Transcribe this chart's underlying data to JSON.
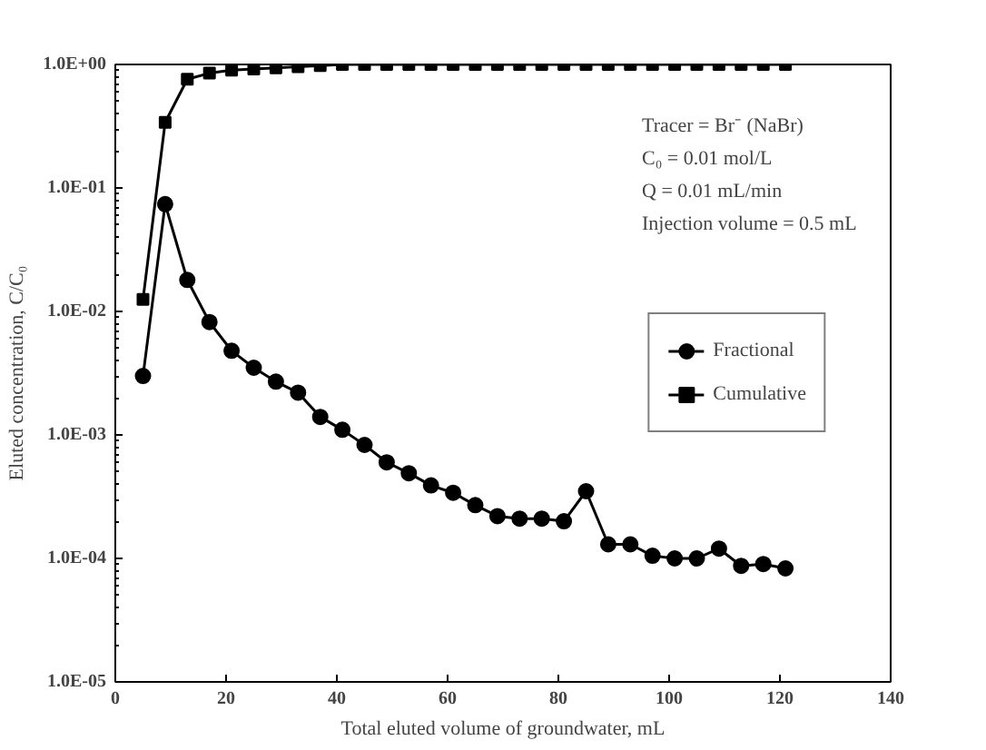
{
  "chart_data": {
    "type": "line",
    "xlabel": "Total eluted volume of groundwater, mL",
    "ylabel": "Eluted concentration, C/C₀",
    "x": [
      5,
      9,
      13,
      17,
      21,
      25,
      29,
      33,
      37,
      41,
      45,
      49,
      53,
      57,
      61,
      65,
      69,
      73,
      77,
      81,
      85,
      89,
      93,
      97,
      101,
      105,
      109,
      113,
      117,
      121
    ],
    "series": [
      {
        "name": "Fractional",
        "color": "#000000",
        "marker": "circle",
        "values": [
          0.003,
          0.074,
          0.018,
          0.0082,
          0.0048,
          0.0035,
          0.0027,
          0.0022,
          0.0014,
          0.0011,
          0.00083,
          0.0006,
          0.00049,
          0.00039,
          0.00034,
          0.00027,
          0.00022,
          0.00021,
          0.00021,
          0.0002,
          0.00035,
          0.00013,
          0.00013,
          0.000105,
          0.0001,
          0.0001,
          0.00012,
          8.7e-05,
          9e-05,
          8.3e-05
        ]
      },
      {
        "name": "Cumulative",
        "color": "#000000",
        "marker": "square",
        "values": [
          0.0125,
          0.34,
          0.76,
          0.85,
          0.9,
          0.92,
          0.94,
          0.96,
          0.98,
          1.0,
          1.0,
          1.0,
          1.0,
          1.0,
          1.0,
          1.0,
          1.0,
          1.0,
          1.0,
          1.0,
          1.0,
          1.0,
          1.0,
          1.0,
          1.0,
          1.0,
          1.0,
          1.0,
          1.0,
          1.0
        ]
      }
    ],
    "log": "y",
    "xlim": [
      0,
      140
    ],
    "xticks": [
      0,
      20,
      40,
      60,
      80,
      100,
      120,
      140
    ],
    "ylim": [
      1e-05,
      1
    ],
    "yticks": [
      {
        "value": 1e-05,
        "label": "1.0E-05"
      },
      {
        "value": 0.0001,
        "label": "1.0E-04"
      },
      {
        "value": 0.001,
        "label": "1.0E-03"
      },
      {
        "value": 0.01,
        "label": "1.0E-02"
      },
      {
        "value": 0.1,
        "label": "1.0E-01"
      },
      {
        "value": 1,
        "label": "1.0E+00"
      }
    ],
    "grid": false,
    "legend": "right",
    "line_style": "solid",
    "annotations": [
      "Tracer = Br⁻ (NaBr)",
      "C₀ = 0.01 mol/L",
      "Q = 0.01 mL/min",
      "Injection volume = 0.5 mL"
    ]
  }
}
